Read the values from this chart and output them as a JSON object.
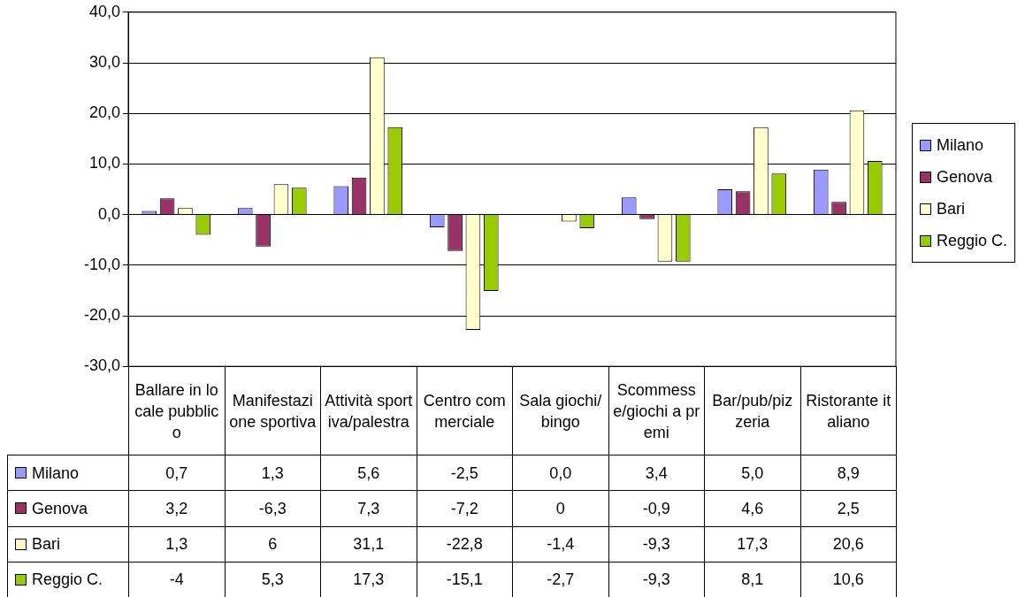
{
  "chart_data": {
    "type": "bar",
    "categories": [
      "Ballare in locale pubblico",
      "Manifestazione sportiva",
      "Attività sportiva/palestra",
      "Centro commerciale",
      "Sala giochi/bingo",
      "Scommesse/giochi a premi",
      "Bar/pub/pizzeria",
      "Ristorante italiano"
    ],
    "series": [
      {
        "name": "Milano",
        "color": "#9999ff",
        "values": [
          0.7,
          1.3,
          5.6,
          -2.5,
          0.0,
          3.4,
          5.0,
          8.9
        ],
        "value_labels": [
          "0,7",
          "1,3",
          "5,6",
          "-2,5",
          "0,0",
          "3,4",
          "5,0",
          "8,9"
        ]
      },
      {
        "name": "Genova",
        "color": "#993366",
        "values": [
          3.2,
          -6.3,
          7.3,
          -7.2,
          0,
          -0.9,
          4.6,
          2.5
        ],
        "value_labels": [
          "3,2",
          "-6,3",
          "7,3",
          "-7,2",
          "0",
          "-0,9",
          "4,6",
          "2,5"
        ]
      },
      {
        "name": "Bari",
        "color": "#ffffcc",
        "values": [
          1.3,
          6,
          31.1,
          -22.8,
          -1.4,
          -9.3,
          17.3,
          20.6
        ],
        "value_labels": [
          "1,3",
          "6",
          "31,1",
          "-22,8",
          "-1,4",
          "-9,3",
          "17,3",
          "20,6"
        ]
      },
      {
        "name": "Reggio C.",
        "color": "#99cc00",
        "values": [
          -4,
          5.3,
          17.3,
          -15.1,
          -2.7,
          -9.3,
          8.1,
          10.6
        ],
        "value_labels": [
          "-4",
          "5,3",
          "17,3",
          "-15,1",
          "-2,7",
          "-9,3",
          "8,1",
          "10,6"
        ]
      }
    ],
    "ylim": [
      -30,
      40
    ],
    "yticks": [
      {
        "value": -30,
        "label": "-30,0"
      },
      {
        "value": -20,
        "label": "-20,0"
      },
      {
        "value": -10,
        "label": "-10,0"
      },
      {
        "value": 0,
        "label": "0,0"
      },
      {
        "value": 10,
        "label": "10,0"
      },
      {
        "value": 20,
        "label": "20,0"
      },
      {
        "value": 30,
        "label": "30,0"
      },
      {
        "value": 40,
        "label": "40,0"
      }
    ],
    "grid": "y",
    "legend": "right"
  }
}
